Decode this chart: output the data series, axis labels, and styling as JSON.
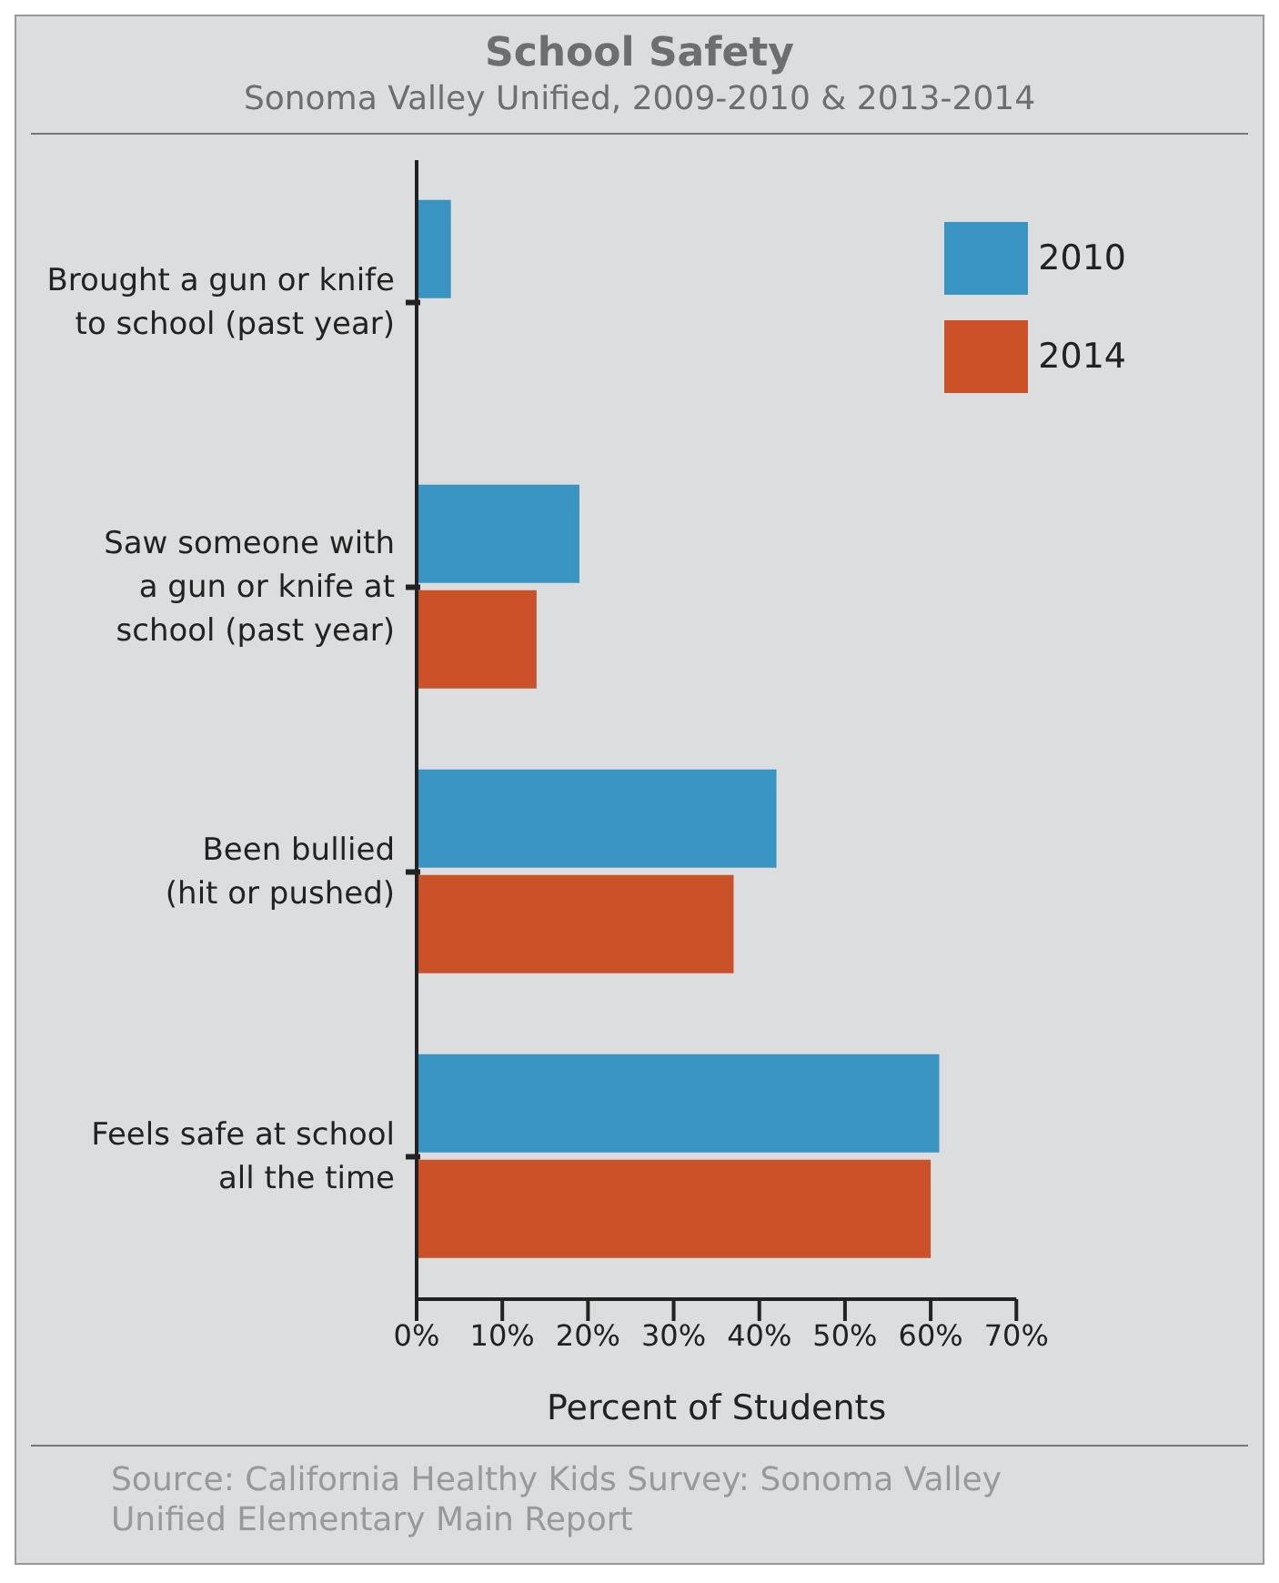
{
  "chart_data": {
    "type": "bar",
    "orientation": "horizontal",
    "title": "School Safety",
    "subtitle": "Sonoma Valley Unified, 2009-2010 & 2013-2014",
    "xlabel": "Percent of Students",
    "categories": [
      "Brought a gun or knife\nto school (past year)",
      "Saw someone with\na gun or knife at\nschool (past year)",
      "Been bullied\n(hit or pushed)",
      "Feels safe at school\nall the time"
    ],
    "series": [
      {
        "name": "2010",
        "color": "#3a94c1",
        "values": [
          4,
          19,
          42,
          61
        ]
      },
      {
        "name": "2014",
        "color": "#cb5128",
        "values": [
          0,
          14,
          37,
          60
        ]
      }
    ],
    "xlim": [
      0,
      70
    ],
    "xticks": [
      {
        "value": 0,
        "label": "0%"
      },
      {
        "value": 10,
        "label": "10%"
      },
      {
        "value": 20,
        "label": "20%"
      },
      {
        "value": 30,
        "label": "30%"
      },
      {
        "value": 40,
        "label": "40%"
      },
      {
        "value": 50,
        "label": "50%"
      },
      {
        "value": 60,
        "label": "60%"
      },
      {
        "value": 70,
        "label": "70%"
      }
    ],
    "grid": false,
    "legend": "top right",
    "annotations": [
      "Source: California Healthy Kids Survey: Sonoma Valley\nUnified Elementary Main Report"
    ]
  }
}
